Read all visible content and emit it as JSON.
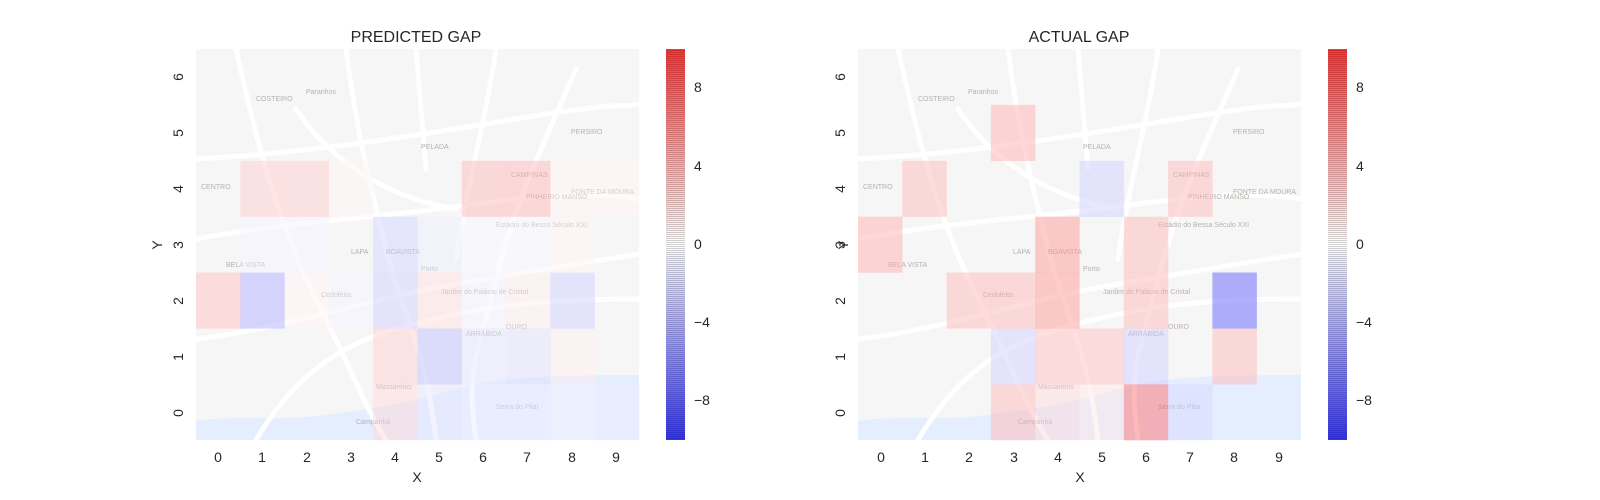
{
  "colors": {
    "background": "#ffffff",
    "map_land": "#f3f3f3",
    "map_water": "#d9e7ff",
    "map_roads": "#ffffff",
    "map_labels": "#9a8f86",
    "cmap_negative": "#0000ff",
    "cmap_zero": "#ffffff",
    "cmap_positive": "#ff0000"
  },
  "map_labels": [
    "COSTEIRO",
    "Paranhos",
    "PELADA",
    "PERSIRO",
    "CAMPINAS",
    "FONTE DA MOURA",
    "PINHEIRO MANSO",
    "Estádio do Bessa Século XXI",
    "BOAVISTA",
    "LAPA",
    "Porto",
    "Cedofeita",
    "Jardim do Palácio de Cristal",
    "ARRÁBIDA",
    "OURO",
    "Massarelos",
    "CENTRO",
    "Campanhã",
    "BELA VISTA",
    "Serra do Pilar"
  ],
  "chart_data": [
    {
      "type": "heatmap",
      "title": "PREDICTED GAP",
      "xlabel": "X",
      "ylabel": "Y",
      "x_ticks": [
        "0",
        "1",
        "2",
        "3",
        "4",
        "5",
        "6",
        "7",
        "8",
        "9"
      ],
      "y_ticks": [
        "0",
        "1",
        "2",
        "3",
        "4",
        "5",
        "6"
      ],
      "colorbar": {
        "range": [
          -10,
          10
        ],
        "ticks": [
          "8",
          "4",
          "0",
          "−4",
          "−8"
        ],
        "tick_values": [
          8,
          4,
          0,
          -4,
          -8
        ]
      },
      "grid_bottom_to_top": [
        [
          0.0,
          0.0,
          0.0,
          0.0,
          1.2,
          -0.8,
          -0.6,
          -0.6,
          -0.4,
          -0.6
        ],
        [
          0.0,
          0.0,
          0.0,
          0.0,
          1.5,
          -2.0,
          -0.8,
          -1.0,
          0.6,
          0.0
        ],
        [
          2.0,
          -2.5,
          0.4,
          -0.4,
          -1.5,
          1.0,
          -0.4,
          0.6,
          -1.5,
          0.0
        ],
        [
          0.0,
          -0.4,
          -0.4,
          0.0,
          -1.4,
          -0.6,
          -0.2,
          -0.2,
          0.4,
          0.0
        ],
        [
          0.0,
          1.6,
          1.6,
          0.3,
          0.0,
          0.0,
          2.2,
          2.2,
          0.4,
          0.4
        ],
        [
          0.0,
          0.0,
          0.0,
          0.0,
          0.0,
          0.0,
          0.0,
          0.0,
          0.0,
          0.0
        ],
        [
          0.0,
          0.0,
          0.0,
          0.0,
          0.0,
          0.0,
          0.0,
          0.0,
          0.0,
          0.0
        ]
      ]
    },
    {
      "type": "heatmap",
      "title": "ACTUAL GAP",
      "xlabel": "X",
      "ylabel": "Y",
      "x_ticks": [
        "0",
        "1",
        "2",
        "3",
        "4",
        "5",
        "6",
        "7",
        "8",
        "9"
      ],
      "y_ticks": [
        "0",
        "1",
        "2",
        "3",
        "4",
        "5",
        "6"
      ],
      "colorbar": {
        "range": [
          -10,
          10
        ],
        "ticks": [
          "8",
          "4",
          "0",
          "−4",
          "−8"
        ],
        "tick_values": [
          8,
          4,
          0,
          -4,
          -8
        ]
      },
      "grid_bottom_to_top": [
        [
          0.0,
          0.0,
          0.0,
          2.2,
          1.2,
          0.8,
          4.5,
          -1.2,
          0.0,
          0.0
        ],
        [
          0.0,
          0.0,
          0.0,
          -1.5,
          2.0,
          2.0,
          -1.5,
          0.0,
          2.2,
          0.0
        ],
        [
          0.0,
          0.0,
          2.2,
          2.2,
          3.2,
          0.0,
          2.2,
          0.0,
          -5.0,
          0.0
        ],
        [
          2.5,
          0.0,
          0.0,
          0.0,
          3.2,
          0.0,
          2.2,
          0.0,
          0.0,
          0.0
        ],
        [
          0.0,
          2.2,
          0.0,
          0.0,
          0.0,
          -1.5,
          0.0,
          2.2,
          0.0,
          0.0
        ],
        [
          0.0,
          0.0,
          0.0,
          2.5,
          0.0,
          0.0,
          0.0,
          0.0,
          0.0,
          0.0
        ],
        [
          0.0,
          0.0,
          0.0,
          0.0,
          0.0,
          0.0,
          0.0,
          0.0,
          0.0,
          0.0
        ]
      ]
    }
  ]
}
